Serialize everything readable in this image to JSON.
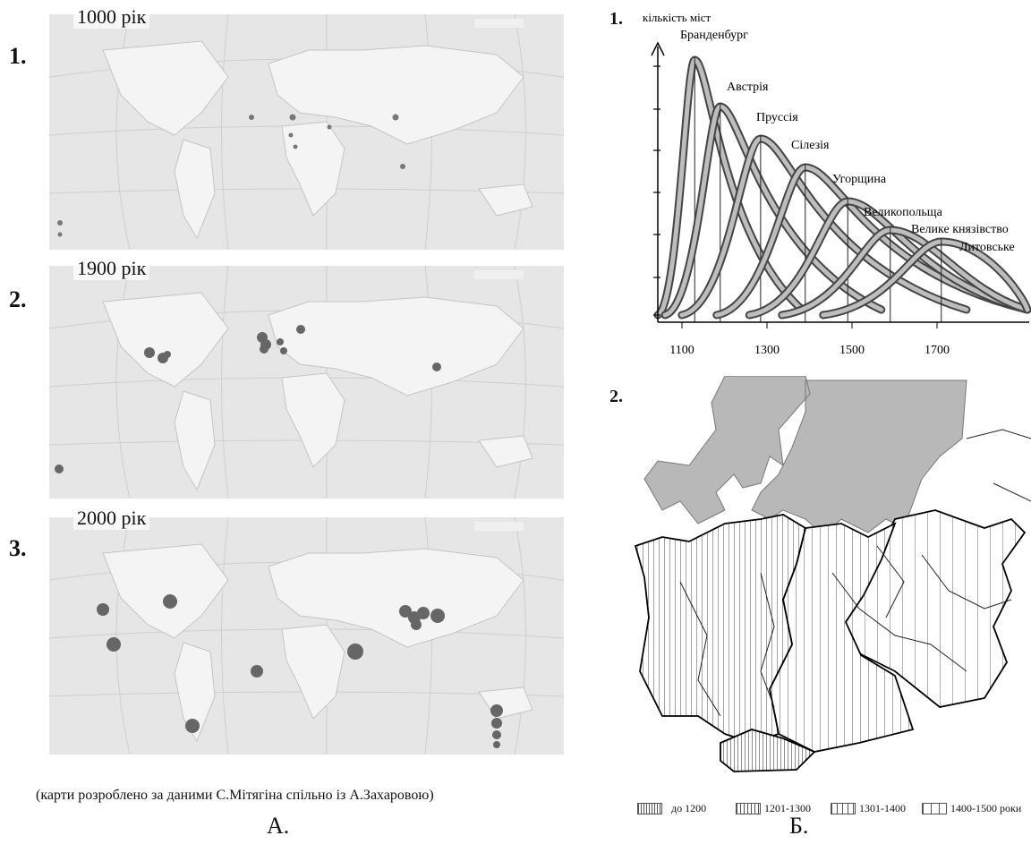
{
  "panel_a": {
    "letter": "А.",
    "note": "(карти розроблено за даними С.Мітягіна спільно із А.Захаровою)",
    "maps": [
      {
        "num": "1.",
        "year": "1000 рік"
      },
      {
        "num": "2.",
        "year": "1900 рік"
      },
      {
        "num": "3.",
        "year": "2000 рік"
      }
    ]
  },
  "panel_b": {
    "letter": "Б.",
    "chart_num": "1.",
    "map_num": "2.",
    "legend": [
      "до 1200",
      "1201-1300",
      "1301-1400",
      "1400-1500 роки"
    ]
  },
  "chart_data": {
    "type": "line",
    "ylabel": "кількість міст",
    "x_ticks": [
      "1100",
      "1300",
      "1500",
      "1700"
    ],
    "series": [
      {
        "name": "Бранденбург",
        "peak_year": 1130
      },
      {
        "name": "Австрія",
        "peak_year": 1190
      },
      {
        "name": "Пруссія",
        "peak_year": 1285
      },
      {
        "name": "Сілезія",
        "peak_year": 1390
      },
      {
        "name": "Угорщина",
        "peak_year": 1490
      },
      {
        "name": "Великопольща",
        "peak_year": 1590
      },
      {
        "name": "Велике князівство Литовське",
        "peak_year": 1710
      }
    ]
  }
}
